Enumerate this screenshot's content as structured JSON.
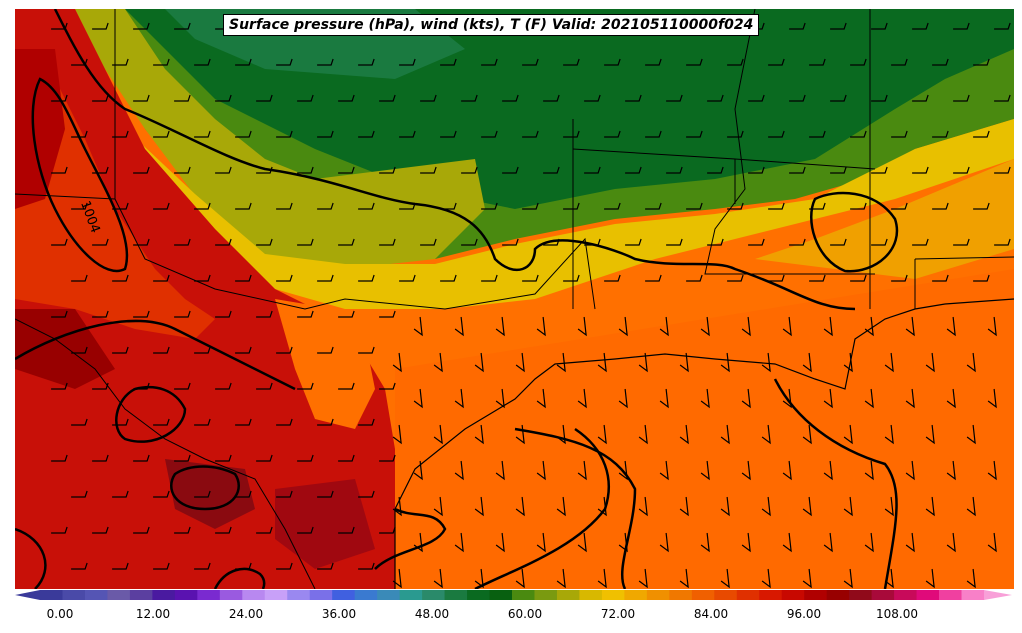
{
  "title": "Surface pressure (hPa), wind (kts), T (F) Valid: 202105110000f024",
  "isobar_label": "1004",
  "colorbar": {
    "tick_labels": [
      "0.00",
      "12.00",
      "24.00",
      "36.00",
      "48.00",
      "60.00",
      "72.00",
      "84.00",
      "96.00",
      "108.00"
    ],
    "colors": [
      "#3a3a9a",
      "#4a4aa8",
      "#5555b4",
      "#6a5aa8",
      "#5b3fa0",
      "#4a1aa0",
      "#5a12b0",
      "#7a2ad0",
      "#9a5ae0",
      "#b888f0",
      "#c8a0f8",
      "#9a88f0",
      "#7a70e8",
      "#4060e0",
      "#3a7ad0",
      "#3a8ab8",
      "#2a9a90",
      "#2a8a6a",
      "#1a7a40",
      "#0a6a20",
      "#086010",
      "#4a8a10",
      "#7a9a10",
      "#a8a808",
      "#d8b800",
      "#f0c000",
      "#f0a800",
      "#f09000",
      "#f07800",
      "#f06000",
      "#e84a00",
      "#e03000",
      "#d81800",
      "#c80800",
      "#b00000",
      "#980000",
      "#900a1a",
      "#a80a3a",
      "#c80a5a",
      "#e00a7a",
      "#f040a0",
      "#f880c8"
    ]
  },
  "colors": {
    "hot": "#c81008",
    "warm": "#ff7000",
    "mid": "#f0a000",
    "yellow": "#e8c000",
    "olive": "#a8a808",
    "green": "#4a8a10",
    "dark_green": "#0a6a20",
    "darker": "#8a0a10"
  }
}
